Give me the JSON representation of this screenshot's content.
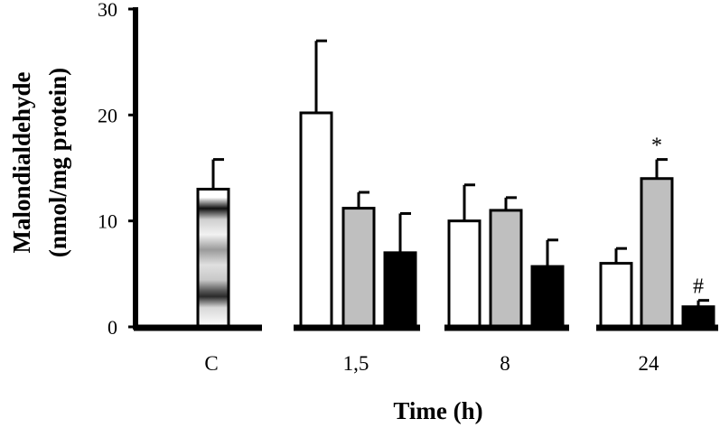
{
  "chart_data": {
    "type": "bar",
    "ylabel_line1": "Malondialdehyde",
    "ylabel_line2": "(nmol/mg protein)",
    "xlabel": "Time (h)",
    "ylim": [
      0,
      30
    ],
    "yticks": [
      0,
      10,
      20,
      30
    ],
    "grid": false,
    "legend": "none",
    "groups": [
      {
        "label": "C",
        "bars": [
          {
            "style": "gradient",
            "value": 13.0,
            "error": 2.8
          }
        ]
      },
      {
        "label": "1,5",
        "bars": [
          {
            "style": "white",
            "value": 20.2,
            "error": 6.8
          },
          {
            "style": "gray",
            "value": 11.2,
            "error": 1.5
          },
          {
            "style": "black",
            "value": 7.0,
            "error": 3.7
          }
        ]
      },
      {
        "label": "8",
        "bars": [
          {
            "style": "white",
            "value": 10.0,
            "error": 3.4
          },
          {
            "style": "gray",
            "value": 11.0,
            "error": 1.2
          },
          {
            "style": "black",
            "value": 5.7,
            "error": 2.5
          }
        ]
      },
      {
        "label": "24",
        "bars": [
          {
            "style": "white",
            "value": 6.0,
            "error": 1.4
          },
          {
            "style": "gray",
            "value": 14.0,
            "error": 1.8,
            "annotation": "*"
          },
          {
            "style": "black",
            "value": 1.9,
            "error": 0.6,
            "annotation": "#"
          }
        ]
      }
    ],
    "colors": {
      "white": "#ffffff",
      "gray": "#bfbfbf",
      "black": "#000000",
      "stroke": "#000000"
    }
  }
}
